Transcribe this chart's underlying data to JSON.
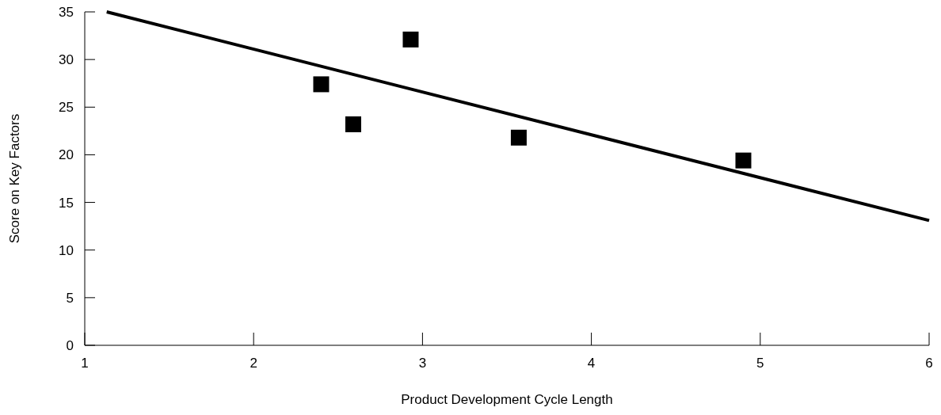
{
  "chart_data": {
    "type": "scatter",
    "xlabel": "Product Development Cycle Length",
    "ylabel": "Score on Key Factors",
    "xlim": [
      1,
      6
    ],
    "xticks": [
      1,
      2,
      3,
      4,
      5,
      6
    ],
    "ylim": [
      0,
      35
    ],
    "yticks": [
      0,
      5,
      10,
      15,
      20,
      25,
      30,
      35
    ],
    "grid": false,
    "marker": "square",
    "series": [
      {
        "color": "#000000",
        "x": [
          2.4,
          2.59,
          2.93,
          3.57,
          4.9
        ],
        "values": [
          27.4,
          23.2,
          32.1,
          21.8,
          19.4
        ]
      },
      {
        "type": "line",
        "color": "#000000",
        "marker": "none",
        "line_style": "solid",
        "x": [
          1.13,
          6
        ],
        "values": [
          35,
          13.1
        ]
      }
    ]
  }
}
